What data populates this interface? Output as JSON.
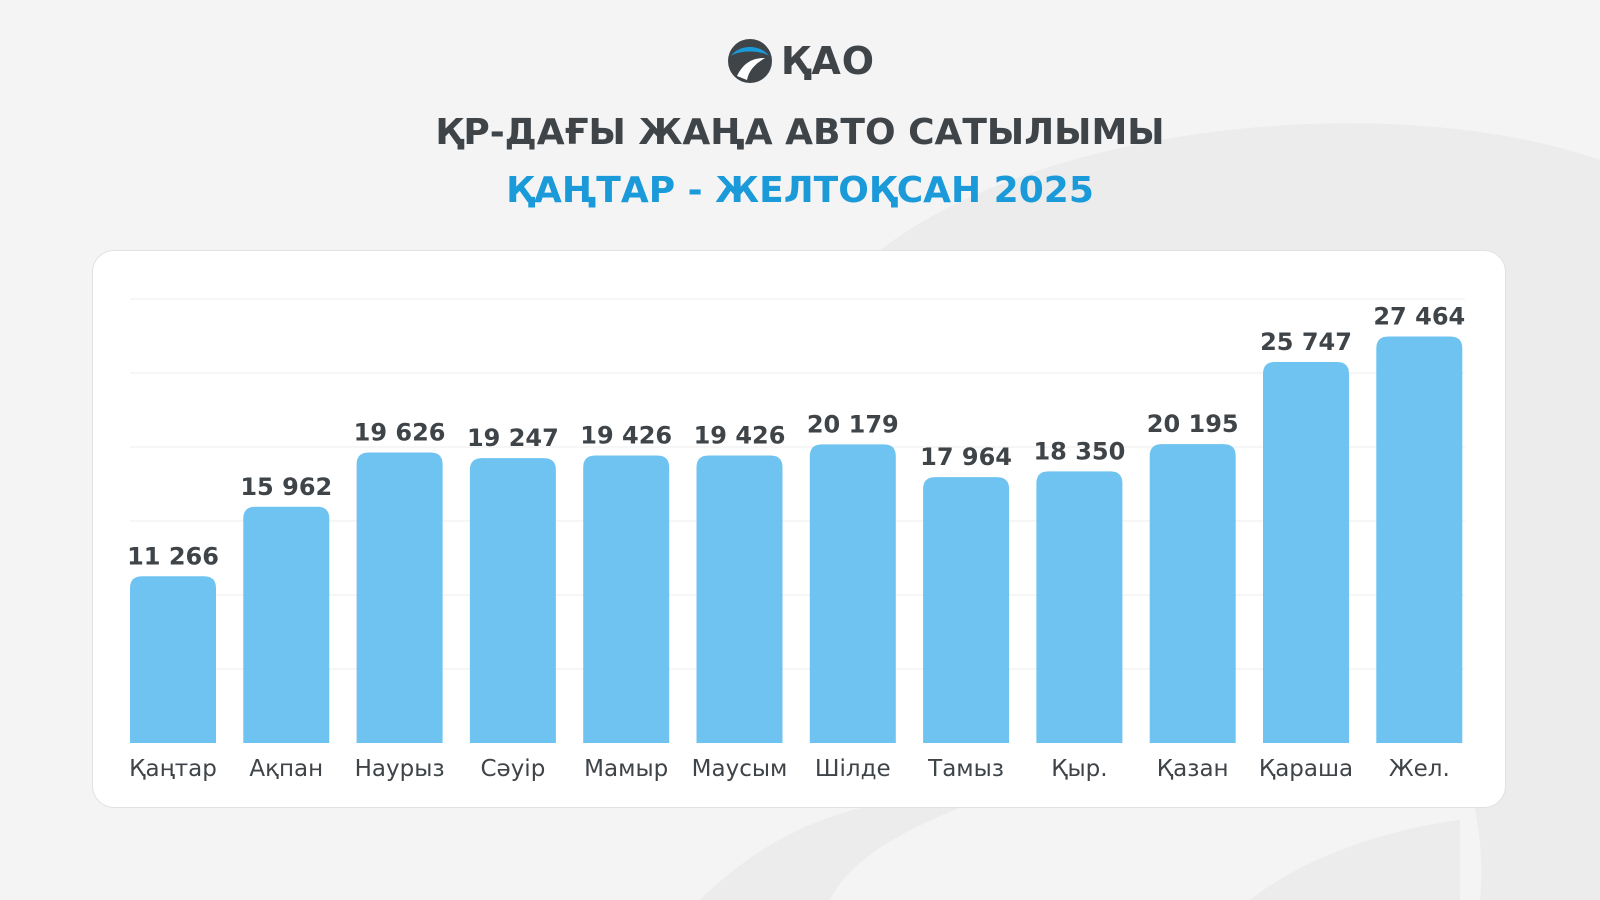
{
  "logo": {
    "text": "ҚАО",
    "icon": "road-circle-icon"
  },
  "header": {
    "title": "ҚР-ДАҒЫ ЖАҢА АВТО САТЫЛЫМЫ",
    "subtitle": "ҚАҢТАР - ЖЕЛТОҚСАН 2025"
  },
  "colors": {
    "bar": "#6ec3f1",
    "title": "#3f4448",
    "subtitle": "#1a9ad9",
    "grid": "#ececec",
    "value_label": "#3f4448",
    "category_label": "#3f4448"
  },
  "chart_data": {
    "type": "bar",
    "title": "ҚР-ДАҒЫ ЖАҢА АВТО САТЫЛЫМЫ",
    "subtitle": "ҚАҢТАР - ЖЕЛТОҚСАН 2025",
    "categories": [
      "Қаңтар",
      "Ақпан",
      "Наурыз",
      "Сәуір",
      "Мамыр",
      "Маусым",
      "Шілде",
      "Тамыз",
      "Қыр.",
      "Қазан",
      "Қараша",
      "Жел."
    ],
    "values": [
      11266,
      15962,
      19626,
      19247,
      19426,
      19426,
      20179,
      17964,
      18350,
      20195,
      25747,
      27464
    ],
    "value_labels": [
      "11 266",
      "15 962",
      "19 626",
      "19 247",
      "19 426",
      "19 426",
      "20 179",
      "17 964",
      "18 350",
      "20 195",
      "25 747",
      "27 464"
    ],
    "xlabel": "",
    "ylabel": "",
    "ylim": [
      0,
      30000
    ],
    "grid": true,
    "legend": "none"
  }
}
